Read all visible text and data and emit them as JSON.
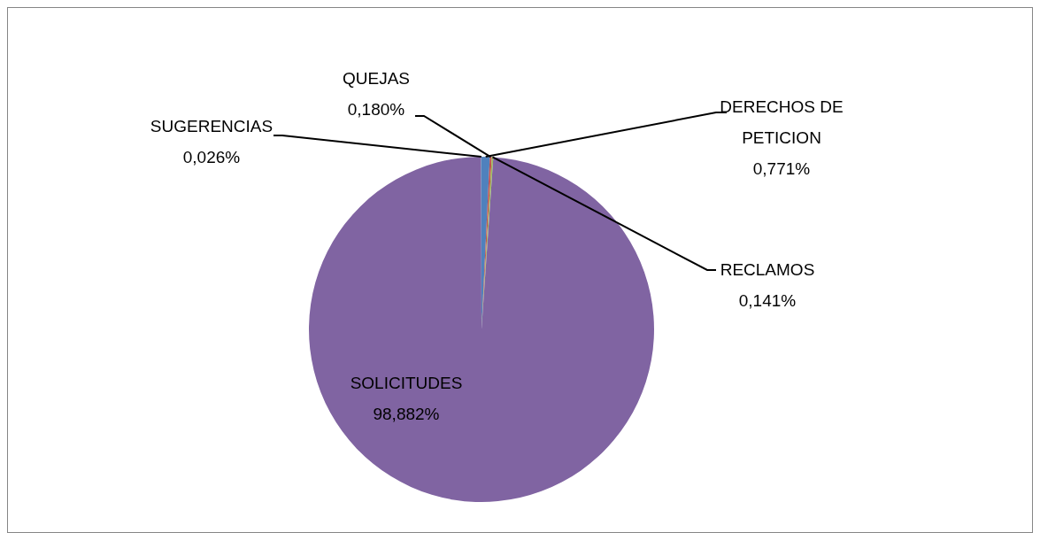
{
  "chart_data": {
    "type": "pie",
    "categories": [
      "DERECHOS DE PETICION",
      "QUEJAS",
      "RECLAMOS",
      "SOLICITUDES",
      "SUGERENCIAS"
    ],
    "values": [
      0.771,
      0.18,
      0.141,
      98.882,
      0.026
    ],
    "colors": [
      "#4f81bd",
      "#c0504d",
      "#9bbb59",
      "#8064a2",
      "#4bacc6"
    ],
    "value_labels": [
      "0,771%",
      "0,180%",
      "0,141%",
      "98,882%",
      "0,026%"
    ],
    "legend": false
  }
}
